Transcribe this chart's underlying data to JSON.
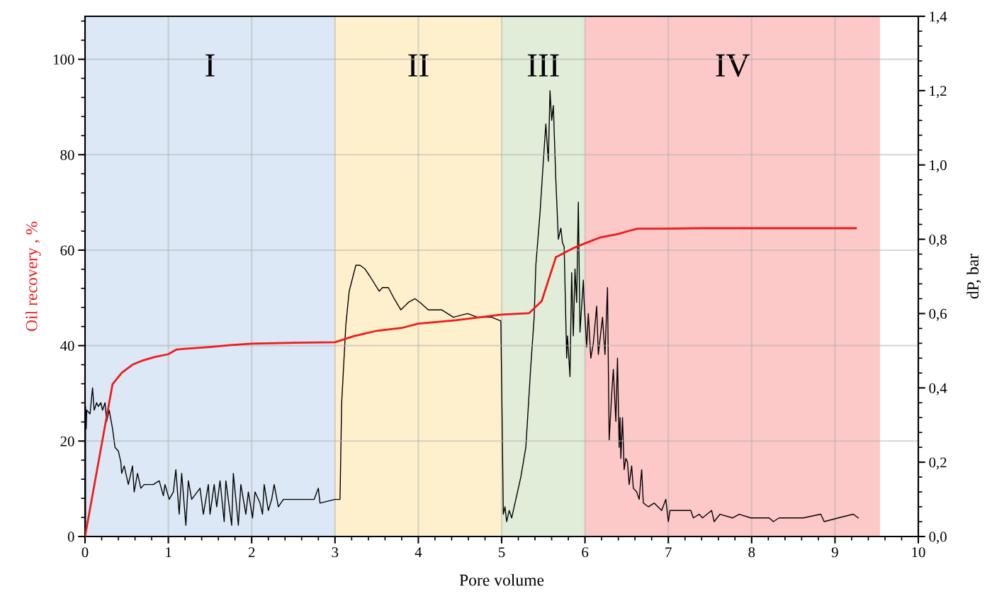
{
  "chart_data": {
    "type": "line",
    "xlabel": "Pore volume",
    "ylabel": "Oil recovery , %",
    "y2label": "dP, bar",
    "xlim": [
      0,
      10
    ],
    "xticks": [
      0,
      1,
      2,
      3,
      4,
      5,
      6,
      7,
      8,
      9,
      10
    ],
    "ylim": [
      0,
      109
    ],
    "yticks": [
      0,
      20,
      40,
      60,
      80,
      100
    ],
    "y2lim": [
      0,
      1.4
    ],
    "y2ticks": [
      {
        "value": 0,
        "label": "0,0"
      },
      {
        "value": 0.2,
        "label": "0,2"
      },
      {
        "value": 0.4,
        "label": "0,4"
      },
      {
        "value": 0.6,
        "label": "0,6"
      },
      {
        "value": 0.8,
        "label": "0,8"
      },
      {
        "value": 1.0,
        "label": "1,0"
      },
      {
        "value": 1.2,
        "label": "1,2"
      },
      {
        "value": 1.4,
        "label": "1,4"
      }
    ],
    "grid": true,
    "marker": "none",
    "line_style": "solid",
    "bands": [
      {
        "axis": "x",
        "from": 0,
        "to": 3,
        "label": "I",
        "color": "#dce8f5"
      },
      {
        "axis": "x",
        "from": 3,
        "to": 5,
        "label": "II",
        "color": "#fef0cc"
      },
      {
        "axis": "x",
        "from": 5,
        "to": 6,
        "label": "III",
        "color": "#e1ecd9"
      },
      {
        "axis": "x",
        "from": 6,
        "to": 9.54,
        "label": "IV",
        "color": "#fdc8c8"
      }
    ],
    "series": [
      {
        "color": "#000000",
        "axis": "y2",
        "x": [
          0.006,
          0.006,
          0.014,
          0.02,
          0.06,
          0.09,
          0.11,
          0.14,
          0.16,
          0.19,
          0.21,
          0.24,
          0.26,
          0.29,
          0.33,
          0.36,
          0.4,
          0.43,
          0.44,
          0.47,
          0.5,
          0.52,
          0.57,
          0.59,
          0.63,
          0.67,
          0.71,
          0.82,
          0.89,
          0.94,
          0.96,
          1.01,
          1.06,
          1.09,
          1.13,
          1.16,
          1.21,
          1.24,
          1.28,
          1.38,
          1.42,
          1.48,
          1.5,
          1.55,
          1.58,
          1.62,
          1.67,
          1.69,
          1.76,
          1.78,
          1.84,
          1.87,
          1.93,
          1.96,
          2.01,
          2.04,
          2.1,
          2.13,
          2.15,
          2.2,
          2.24,
          2.27,
          2.32,
          2.38,
          2.75,
          2.8,
          2.82,
          3.0,
          3.06,
          3.08,
          3.13,
          3.17,
          3.25,
          3.3,
          3.36,
          3.42,
          3.53,
          3.57,
          3.64,
          3.71,
          3.79,
          3.88,
          3.96,
          4.02,
          4.12,
          4.28,
          4.42,
          4.59,
          4.71,
          4.88,
          4.99,
          5.02,
          5.04,
          5.06,
          5.09,
          5.12,
          5.17,
          5.23,
          5.29,
          5.35,
          5.39,
          5.41,
          5.46,
          5.5,
          5.53,
          5.56,
          5.58,
          5.6,
          5.62,
          5.65,
          5.68,
          5.71,
          5.73,
          5.75,
          5.78,
          5.79,
          5.82,
          5.84,
          5.86,
          5.88,
          5.9,
          5.92,
          5.94,
          5.98,
          5.99,
          6.02,
          6.04,
          6.07,
          6.1,
          6.14,
          6.16,
          6.21,
          6.24,
          6.27,
          6.29,
          6.32,
          6.34,
          6.37,
          6.39,
          6.41,
          6.42,
          6.43,
          6.45,
          6.47,
          6.49,
          6.51,
          6.53,
          6.56,
          6.58,
          6.62,
          6.65,
          6.68,
          6.7,
          6.76,
          6.83,
          6.92,
          6.97,
          7.0,
          7.02,
          7.14,
          7.27,
          7.3,
          7.37,
          7.41,
          7.52,
          7.55,
          7.62,
          7.77,
          7.85,
          7.99,
          8.21,
          8.26,
          8.33,
          8.62,
          8.83,
          8.87,
          9.04,
          9.22,
          9.28
        ],
        "values": [
          0.0,
          0.35,
          0.29,
          0.34,
          0.33,
          0.4,
          0.34,
          0.36,
          0.35,
          0.36,
          0.34,
          0.36,
          0.31,
          0.34,
          0.29,
          0.24,
          0.23,
          0.2,
          0.17,
          0.19,
          0.16,
          0.14,
          0.19,
          0.12,
          0.17,
          0.13,
          0.14,
          0.14,
          0.15,
          0.11,
          0.14,
          0.1,
          0.12,
          0.18,
          0.06,
          0.17,
          0.03,
          0.15,
          0.1,
          0.13,
          0.06,
          0.14,
          0.06,
          0.14,
          0.08,
          0.15,
          0.04,
          0.15,
          0.03,
          0.17,
          0.03,
          0.14,
          0.06,
          0.12,
          0.05,
          0.12,
          0.09,
          0.06,
          0.14,
          0.07,
          0.1,
          0.14,
          0.08,
          0.1,
          0.1,
          0.13,
          0.09,
          0.1,
          0.1,
          0.36,
          0.57,
          0.66,
          0.73,
          0.73,
          0.72,
          0.7,
          0.66,
          0.67,
          0.67,
          0.64,
          0.61,
          0.63,
          0.64,
          0.63,
          0.61,
          0.61,
          0.59,
          0.6,
          0.59,
          0.59,
          0.58,
          0.06,
          0.08,
          0.04,
          0.07,
          0.05,
          0.1,
          0.16,
          0.24,
          0.46,
          0.59,
          0.73,
          0.87,
          1.01,
          1.11,
          1.01,
          1.2,
          1.12,
          1.16,
          0.96,
          0.8,
          0.83,
          0.79,
          0.78,
          0.48,
          0.54,
          0.43,
          0.71,
          0.54,
          0.72,
          0.63,
          0.9,
          0.55,
          0.69,
          0.63,
          0.51,
          0.6,
          0.48,
          0.52,
          0.62,
          0.49,
          0.59,
          0.49,
          0.67,
          0.26,
          0.38,
          0.45,
          0.31,
          0.48,
          0.24,
          0.32,
          0.21,
          0.32,
          0.18,
          0.21,
          0.2,
          0.14,
          0.19,
          0.13,
          0.12,
          0.1,
          0.18,
          0.09,
          0.08,
          0.09,
          0.07,
          0.1,
          0.04,
          0.07,
          0.07,
          0.07,
          0.05,
          0.06,
          0.05,
          0.07,
          0.04,
          0.06,
          0.05,
          0.06,
          0.05,
          0.05,
          0.04,
          0.05,
          0.05,
          0.06,
          0.04,
          0.05,
          0.06,
          0.05
        ]
      },
      {
        "color": "#ee1c1c",
        "axis": "y",
        "x": [
          0,
          0.33,
          0.44,
          0.57,
          0.68,
          0.83,
          1.0,
          1.1,
          1.5,
          1.75,
          2.0,
          2.5,
          3.0,
          3.23,
          3.5,
          3.8,
          4.0,
          4.45,
          5.0,
          5.33,
          5.48,
          5.65,
          5.87,
          6.01,
          6.19,
          6.4,
          6.52,
          6.63,
          6.95,
          7.4,
          9.25
        ],
        "values": [
          0,
          31.9,
          34.3,
          36.0,
          36.8,
          37.6,
          38.2,
          39.2,
          39.7,
          40.1,
          40.4,
          40.6,
          40.7,
          42.0,
          43.1,
          43.7,
          44.6,
          45.3,
          46.5,
          46.8,
          49.3,
          58.5,
          60.5,
          61.5,
          62.7,
          63.4,
          64.0,
          64.5,
          64.5,
          64.6,
          64.6
        ]
      }
    ]
  }
}
